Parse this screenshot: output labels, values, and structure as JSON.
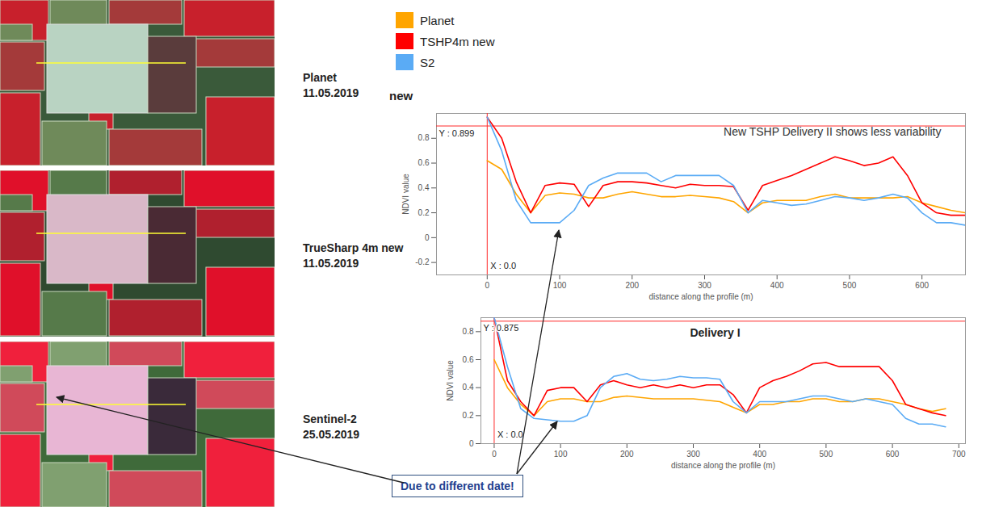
{
  "panels": [
    {
      "label": "Planet",
      "date": "11.05.2019"
    },
    {
      "label": "TrueSharp 4m new",
      "date": "11.05.2019"
    },
    {
      "label": "Sentinel-2",
      "date": "25.05.2019"
    }
  ],
  "callout": "Due to different date!",
  "chart_data": [
    {
      "type": "line",
      "title": "new",
      "annotation": "New TSHP Delivery II shows less variability",
      "x_label": "distance along the profile (m)",
      "y_label": "NDVI value",
      "x": [
        0,
        20,
        40,
        60,
        80,
        100,
        120,
        140,
        160,
        180,
        200,
        220,
        240,
        260,
        280,
        300,
        320,
        340,
        360,
        380,
        400,
        420,
        440,
        460,
        480,
        500,
        520,
        540,
        560,
        580,
        600,
        620,
        640,
        660
      ],
      "series": [
        {
          "name": "Planet",
          "color": "#ffa500",
          "values": [
            0.62,
            0.55,
            0.35,
            0.2,
            0.34,
            0.36,
            0.35,
            0.32,
            0.32,
            0.35,
            0.37,
            0.35,
            0.33,
            0.33,
            0.34,
            0.33,
            0.32,
            0.29,
            0.2,
            0.28,
            0.3,
            0.3,
            0.3,
            0.33,
            0.35,
            0.32,
            0.32,
            0.32,
            0.32,
            0.33,
            0.28,
            0.25,
            0.22,
            0.2
          ]
        },
        {
          "name": "TSHP4m new",
          "color": "#ff0000",
          "values": [
            0.97,
            0.8,
            0.45,
            0.2,
            0.42,
            0.44,
            0.43,
            0.25,
            0.42,
            0.45,
            0.45,
            0.44,
            0.42,
            0.4,
            0.43,
            0.42,
            0.42,
            0.41,
            0.22,
            0.42,
            0.46,
            0.5,
            0.55,
            0.6,
            0.65,
            0.62,
            0.58,
            0.6,
            0.65,
            0.5,
            0.28,
            0.2,
            0.18,
            0.18
          ]
        },
        {
          "name": "S2",
          "color": "#5aabf5",
          "values": [
            0.97,
            0.7,
            0.3,
            0.12,
            0.12,
            0.12,
            0.22,
            0.42,
            0.48,
            0.52,
            0.52,
            0.52,
            0.45,
            0.5,
            0.5,
            0.5,
            0.5,
            0.42,
            0.2,
            0.3,
            0.28,
            0.26,
            0.27,
            0.3,
            0.33,
            0.32,
            0.3,
            0.32,
            0.35,
            0.32,
            0.2,
            0.12,
            0.12,
            0.1
          ]
        }
      ],
      "xlim": [
        -70,
        660
      ],
      "ylim": [
        -0.3,
        1.0
      ],
      "xticks": [
        0,
        100,
        200,
        300,
        400,
        500,
        600
      ],
      "yticks": [
        -0.2,
        0,
        0.2,
        0.4,
        0.6,
        0.8
      ],
      "grid": false,
      "legend": "top",
      "cursor": {
        "x": 0,
        "y": 0.899,
        "x_text": "X : 0.0",
        "y_text": "Y : 0.899"
      }
    },
    {
      "type": "line",
      "title": "Delivery I",
      "x_label": "distance along the profile (m)",
      "y_label": "NDVI value",
      "x": [
        0,
        20,
        40,
        60,
        80,
        100,
        120,
        140,
        160,
        180,
        200,
        220,
        240,
        260,
        280,
        300,
        320,
        340,
        360,
        380,
        400,
        420,
        440,
        460,
        480,
        500,
        520,
        540,
        560,
        580,
        600,
        620,
        640,
        660,
        680
      ],
      "series": [
        {
          "name": "Planet",
          "color": "#ffa500",
          "values": [
            0.6,
            0.4,
            0.28,
            0.2,
            0.3,
            0.32,
            0.32,
            0.3,
            0.3,
            0.33,
            0.34,
            0.33,
            0.32,
            0.32,
            0.32,
            0.32,
            0.31,
            0.3,
            0.26,
            0.22,
            0.28,
            0.28,
            0.3,
            0.3,
            0.32,
            0.32,
            0.3,
            0.3,
            0.32,
            0.32,
            0.3,
            0.28,
            0.25,
            0.23,
            0.25
          ]
        },
        {
          "name": "TSHP4m new",
          "color": "#ff0000",
          "values": [
            0.9,
            0.45,
            0.3,
            0.2,
            0.38,
            0.4,
            0.4,
            0.3,
            0.42,
            0.45,
            0.42,
            0.4,
            0.42,
            0.4,
            0.42,
            0.4,
            0.42,
            0.42,
            0.35,
            0.22,
            0.4,
            0.45,
            0.48,
            0.52,
            0.57,
            0.58,
            0.55,
            0.55,
            0.55,
            0.55,
            0.45,
            0.28,
            0.25,
            0.22,
            0.2
          ]
        },
        {
          "name": "S2",
          "color": "#5aabf5",
          "values": [
            0.9,
            0.55,
            0.25,
            0.18,
            0.17,
            0.16,
            0.16,
            0.2,
            0.4,
            0.48,
            0.5,
            0.46,
            0.45,
            0.46,
            0.48,
            0.47,
            0.47,
            0.46,
            0.3,
            0.22,
            0.3,
            0.3,
            0.3,
            0.32,
            0.34,
            0.34,
            0.32,
            0.3,
            0.32,
            0.3,
            0.28,
            0.18,
            0.14,
            0.14,
            0.12
          ]
        }
      ],
      "xlim": [
        -20,
        710
      ],
      "ylim": [
        0,
        0.9
      ],
      "xticks": [
        0,
        100,
        200,
        300,
        400,
        500,
        600,
        700
      ],
      "yticks": [
        0,
        0.2,
        0.4,
        0.6,
        0.8
      ],
      "grid": false,
      "cursor": {
        "x": 0,
        "y": 0.875,
        "x_text": "X : 0.0",
        "y_text": "Y : 0.875"
      }
    }
  ]
}
